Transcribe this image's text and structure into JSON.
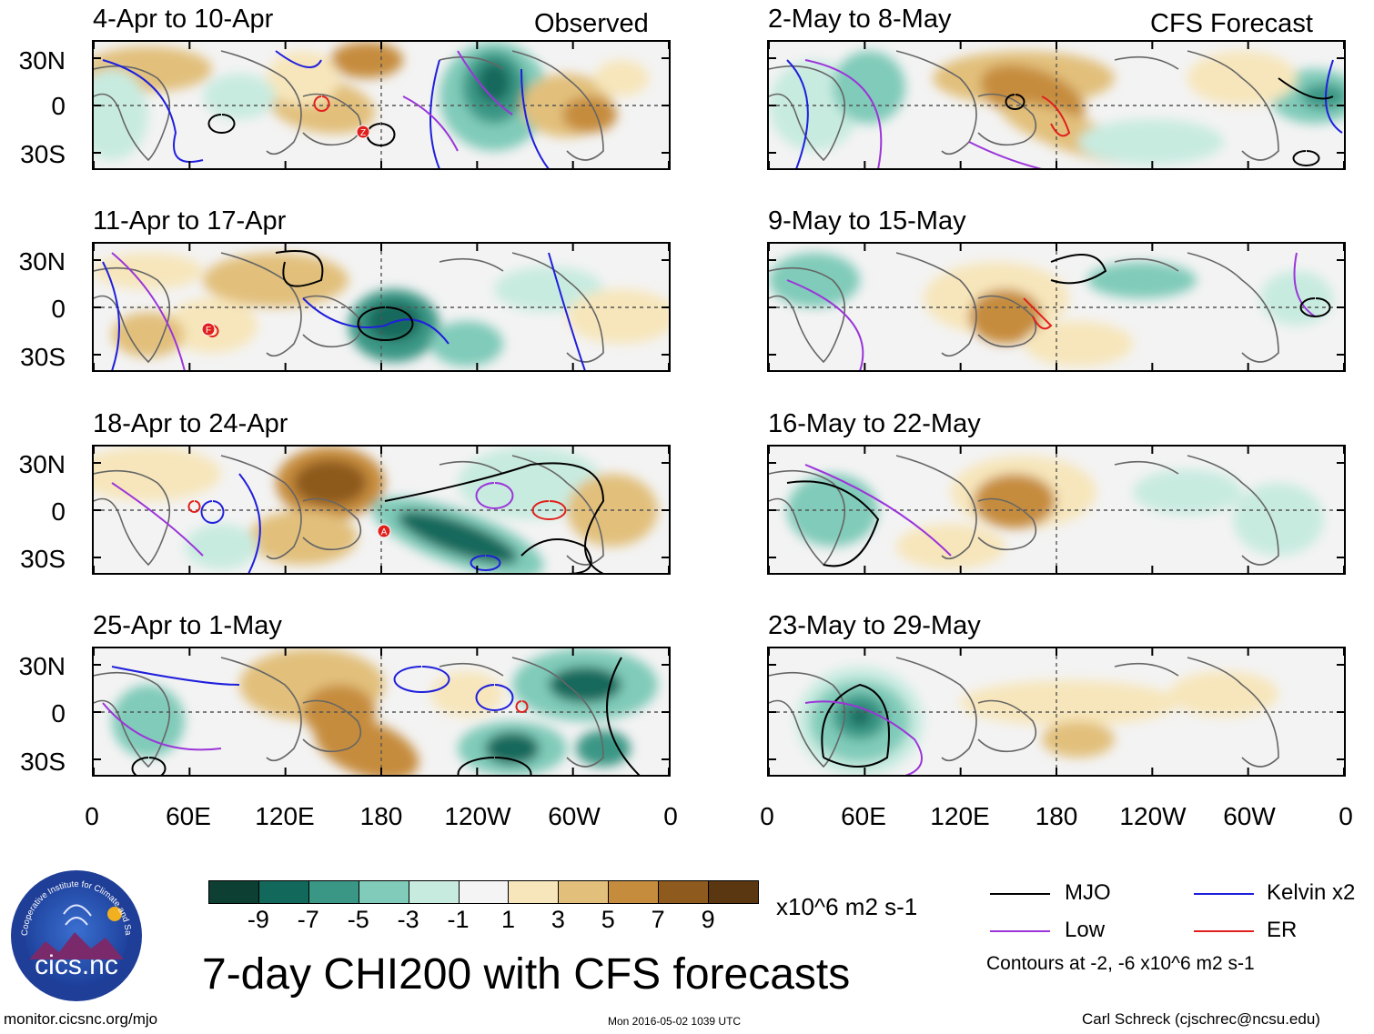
{
  "labels": {
    "observed": "Observed",
    "forecast": "CFS Forecast",
    "lat": [
      "30N",
      "0",
      "30S"
    ],
    "lon": [
      "0",
      "60E",
      "120E",
      "180",
      "120W",
      "60W",
      "0"
    ]
  },
  "panels": {
    "left": [
      "4-Apr to 10-Apr",
      "11-Apr to 17-Apr",
      "18-Apr to 24-Apr",
      "25-Apr to 1-May"
    ],
    "right": [
      "2-May to 8-May",
      "9-May to 15-May",
      "16-May to 22-May",
      "23-May to 29-May"
    ]
  },
  "storm_markers": [
    "Z",
    "F",
    "A"
  ],
  "colorbar": {
    "ticks": [
      "-9",
      "-7",
      "-5",
      "-3",
      "-1",
      "1",
      "3",
      "5",
      "7",
      "9"
    ],
    "colors": [
      "#0d3f33",
      "#12695b",
      "#3a9785",
      "#80cbb9",
      "#c8ebe0",
      "#f4f4f4",
      "#f7e6bb",
      "#e2c07c",
      "#c68c3e",
      "#8e5a1e",
      "#5b3711"
    ],
    "units": "x10^6 m2 s-1"
  },
  "legend": {
    "items": [
      {
        "label": "MJO",
        "color": "#000000"
      },
      {
        "label": "Kelvin x2",
        "color": "#1f1fdc"
      },
      {
        "label": "Low",
        "color": "#9b35d9"
      },
      {
        "label": "ER",
        "color": "#e0201c"
      }
    ],
    "contours_note": "Contours at -2, -6 x10^6 m2 s-1"
  },
  "footer": {
    "url": "monitor.cicsnc.org/mjo",
    "timestamp": "Mon 2016-05-02 1039 UTC",
    "author": "Carl Schreck (cjschrec@ncsu.edu)"
  },
  "main_title": "7-day CHI200 with CFS forecasts",
  "logo": {
    "text": "cics.nc",
    "ring_text": "Cooperative Institute for Climate and Satellites"
  }
}
